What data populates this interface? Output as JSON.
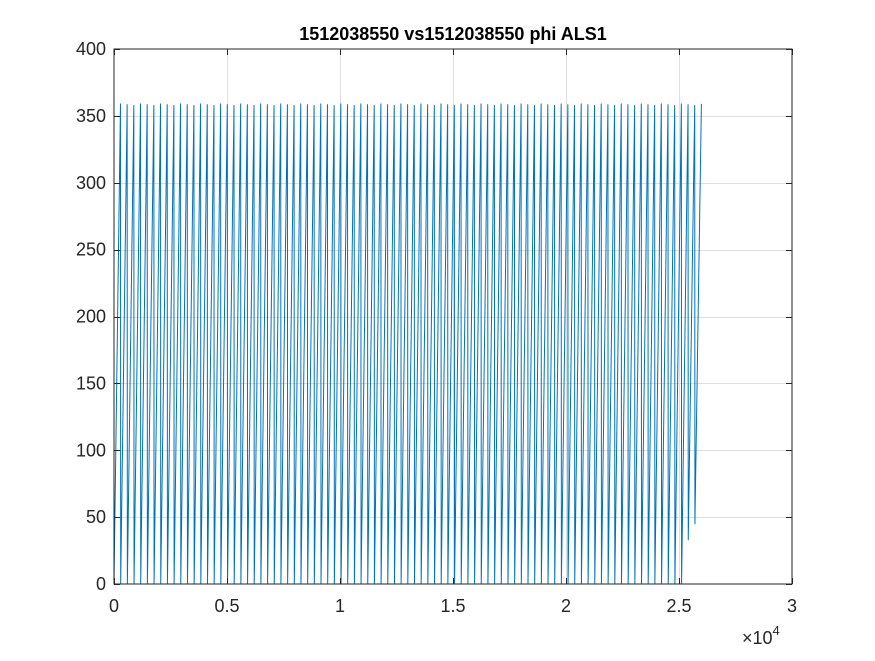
{
  "window": {
    "background_color": "#ffffff"
  },
  "chart_data": {
    "type": "line",
    "title": "1512038550 vs1512038550 phi ALS1",
    "xlabel": "",
    "ylabel": "",
    "xlim": [
      0,
      30000
    ],
    "ylim": [
      0,
      400
    ],
    "x_tick_labels": [
      "0",
      "0.5",
      "1",
      "1.5",
      "2",
      "2.5",
      "3"
    ],
    "x_tick_values": [
      0,
      5000,
      10000,
      15000,
      20000,
      25000,
      30000
    ],
    "x_exponent_label": "×10",
    "x_exponent_power": "4",
    "y_tick_labels": [
      "0",
      "50",
      "100",
      "150",
      "200",
      "250",
      "300",
      "350",
      "400"
    ],
    "y_tick_values": [
      0,
      50,
      100,
      150,
      200,
      250,
      300,
      350,
      400
    ],
    "grid": true,
    "legend": "none",
    "series": [
      {
        "color": "#0072bd",
        "pattern": "sawtooth (wrapped angle 0–360)",
        "x_start": 0,
        "x_end": 26000,
        "num_cycles": 88,
        "y_min": 0,
        "y_max": 359,
        "low_excursions": [
          {
            "x": 25550,
            "y": 33
          },
          {
            "x": 25850,
            "y": 45
          }
        ]
      }
    ]
  }
}
